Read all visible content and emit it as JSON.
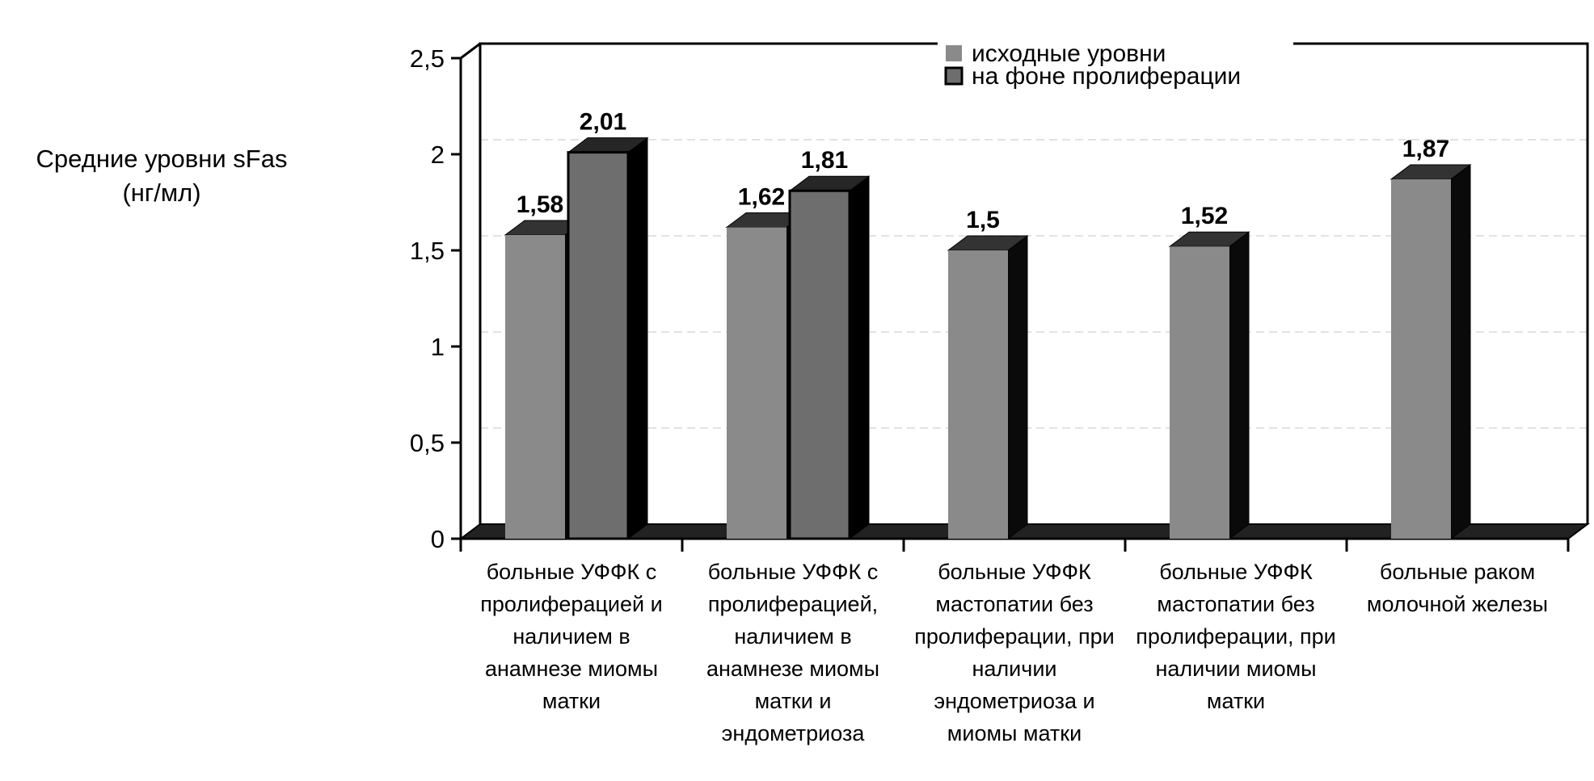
{
  "chart_data": {
    "type": "bar",
    "ylabel": "Средние уровни sFas (нг/мл)",
    "ylabel_lines": [
      "Средние уровни sFas",
      "(нг/мл)"
    ],
    "ylim": [
      0,
      2.5
    ],
    "yticks": [
      "0",
      "0,5",
      "1",
      "1,5",
      "2",
      "2,5"
    ],
    "yticks_values": [
      0,
      0.5,
      1,
      1.5,
      2,
      2.5
    ],
    "grid": true,
    "legend_position": "top-right",
    "categories": [
      [
        "больные УФФК с",
        "пролиферацией и",
        "наличием в",
        "анамнезе миомы",
        "матки"
      ],
      [
        "больные УФФК с",
        "пролиферацией,",
        "наличием в",
        "анамнезе миомы",
        "матки и",
        "эндометриоза"
      ],
      [
        "больные УФФК",
        "мастопатии без",
        "пролиферации, при",
        "наличии",
        "эндометриоза и",
        "миомы матки"
      ],
      [
        "больные УФФК",
        "мастопатии без",
        "пролиферации, при",
        "наличии миомы",
        "матки"
      ],
      [
        "больные раком",
        "молочной железы"
      ]
    ],
    "series": [
      {
        "name": "исходные уровни",
        "color": "#8a8a8a",
        "values": [
          1.58,
          1.62,
          1.5,
          1.52,
          1.87
        ],
        "labels": [
          "1,58",
          "1,62",
          "1,5",
          "1,52",
          "1,87"
        ]
      },
      {
        "name": "на фоне пролиферации",
        "color": "#6e6e6e",
        "values": [
          2.01,
          1.81,
          null,
          null,
          null
        ],
        "labels": [
          "2,01",
          "1,81",
          "",
          "",
          ""
        ]
      }
    ]
  }
}
